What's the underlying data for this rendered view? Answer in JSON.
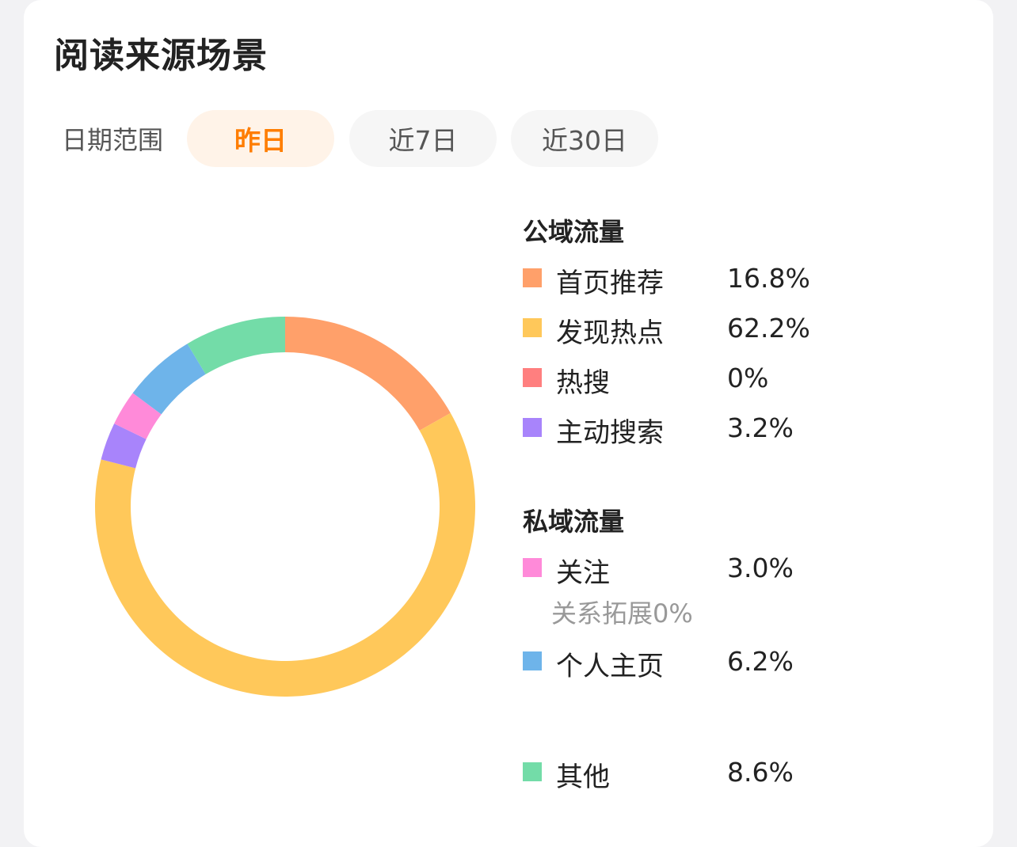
{
  "title": "阅读来源场景",
  "date_range": {
    "label": "日期范围",
    "options": [
      "昨日",
      "近7日",
      "近30日"
    ],
    "selected": "昨日"
  },
  "groups": {
    "public": {
      "title": "公域流量"
    },
    "private": {
      "title": "私域流量"
    }
  },
  "legend": [
    {
      "label": "首页推荐",
      "value": "16.8%",
      "color": "#ffa06a"
    },
    {
      "label": "发现热点",
      "value": "62.2%",
      "color": "#ffc85a"
    },
    {
      "label": "热搜",
      "value": "0%",
      "color": "#ff7f7f"
    },
    {
      "label": "主动搜索",
      "value": "3.2%",
      "color": "#a884fb"
    },
    {
      "label": "关注",
      "value": "3.0%",
      "color": "#ff8ad9"
    },
    {
      "label": "个人主页",
      "value": "6.2%",
      "color": "#6eb4ea"
    },
    {
      "label": "其他",
      "value": "8.6%",
      "color": "#73dca8"
    }
  ],
  "sub_note": "关系拓展0%",
  "chart_data": {
    "type": "pie",
    "donut": true,
    "categories": [
      "首页推荐",
      "发现热点",
      "热搜",
      "主动搜索",
      "关注",
      "个人主页",
      "其他"
    ],
    "values": [
      16.8,
      62.2,
      0,
      3.2,
      3.0,
      6.2,
      8.6
    ],
    "colors": [
      "#ffa06a",
      "#ffc85a",
      "#ff7f7f",
      "#a884fb",
      "#ff8ad9",
      "#6eb4ea",
      "#73dca8"
    ],
    "start_angle": "12 o'clock",
    "direction": "clockwise"
  }
}
